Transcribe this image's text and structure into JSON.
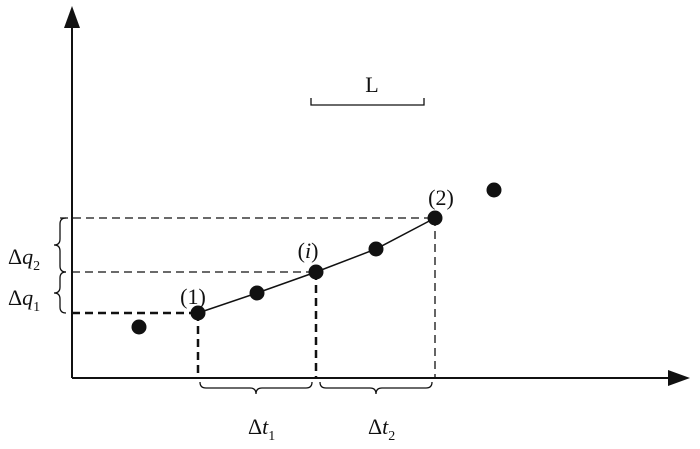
{
  "labels": {
    "scale": "L",
    "point_1": "(1)",
    "point_i": [
      "(",
      "i",
      ")"
    ],
    "point_2": "(2)",
    "delta_q2": {
      "symbol": "Δ",
      "var": "q",
      "sub": "2"
    },
    "delta_q1": {
      "symbol": "Δ",
      "var": "q",
      "sub": "1"
    },
    "delta_t1": {
      "symbol": "Δ",
      "var": "t",
      "sub": "1"
    },
    "delta_t2": {
      "symbol": "Δ",
      "var": "t",
      "sub": "2"
    }
  }
}
